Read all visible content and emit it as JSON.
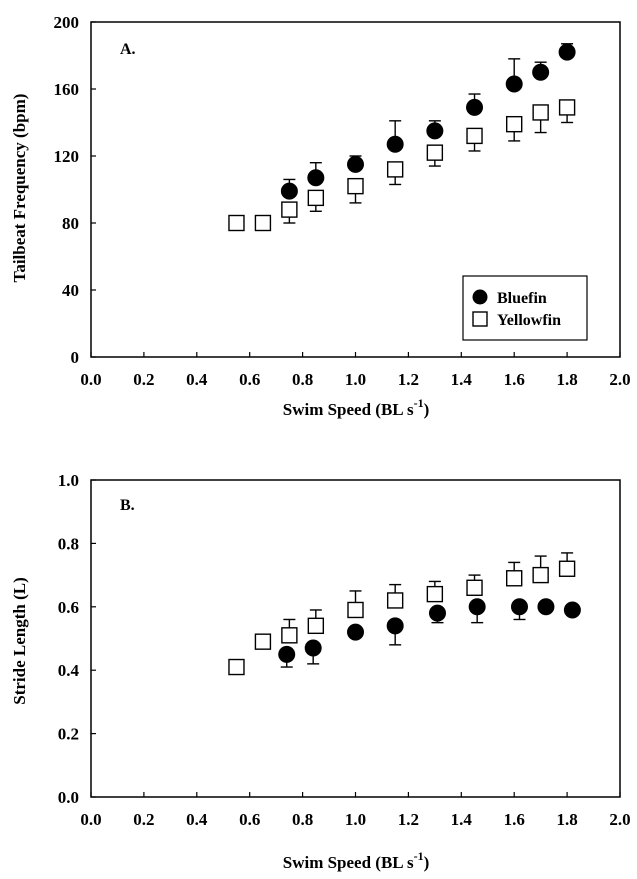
{
  "chart_data": [
    {
      "type": "scatter",
      "panel_label": "A.",
      "xlabel": "Swim Speed (BL s",
      "xlabel_sup": "-1",
      "xlabel_end": ")",
      "ylabel": "Tailbeat Frequency (bpm)",
      "xlim": [
        0.0,
        2.0
      ],
      "ylim": [
        0,
        200
      ],
      "xticks": [
        "0.0",
        "0.2",
        "0.4",
        "0.6",
        "0.8",
        "1.0",
        "1.2",
        "1.4",
        "1.6",
        "1.8",
        "2.0"
      ],
      "yticks": [
        "0",
        "40",
        "80",
        "120",
        "160",
        "200"
      ],
      "grid": false,
      "legend": "bottom-right",
      "series": [
        {
          "name": "Bluefin",
          "marker": "filled-circle",
          "error_bar": "up",
          "points": [
            {
              "x": 0.75,
              "y": 99,
              "err": 7
            },
            {
              "x": 0.85,
              "y": 107,
              "err": 9
            },
            {
              "x": 1.0,
              "y": 115,
              "err": 5
            },
            {
              "x": 1.15,
              "y": 127,
              "err": 14
            },
            {
              "x": 1.3,
              "y": 135,
              "err": 6
            },
            {
              "x": 1.45,
              "y": 149,
              "err": 8
            },
            {
              "x": 1.6,
              "y": 163,
              "err": 15
            },
            {
              "x": 1.7,
              "y": 170,
              "err": 6
            },
            {
              "x": 1.8,
              "y": 182,
              "err": 5
            }
          ]
        },
        {
          "name": "Yellowfin",
          "marker": "open-square",
          "error_bar": "down",
          "points": [
            {
              "x": 0.55,
              "y": 80,
              "err": 0
            },
            {
              "x": 0.65,
              "y": 80,
              "err": 0
            },
            {
              "x": 0.75,
              "y": 88,
              "err": 8
            },
            {
              "x": 0.85,
              "y": 95,
              "err": 8
            },
            {
              "x": 1.0,
              "y": 102,
              "err": 10
            },
            {
              "x": 1.15,
              "y": 112,
              "err": 9
            },
            {
              "x": 1.3,
              "y": 122,
              "err": 8
            },
            {
              "x": 1.45,
              "y": 132,
              "err": 9
            },
            {
              "x": 1.6,
              "y": 139,
              "err": 10
            },
            {
              "x": 1.7,
              "y": 146,
              "err": 12
            },
            {
              "x": 1.8,
              "y": 149,
              "err": 9
            }
          ]
        }
      ]
    },
    {
      "type": "scatter",
      "panel_label": "B.",
      "xlabel": "Swim Speed (BL s",
      "xlabel_sup": "-1",
      "xlabel_end": ")",
      "ylabel": "Stride Length (L)",
      "xlim": [
        0.0,
        2.0
      ],
      "ylim": [
        0.0,
        1.0
      ],
      "xticks": [
        "0.0",
        "0.2",
        "0.4",
        "0.6",
        "0.8",
        "1.0",
        "1.2",
        "1.4",
        "1.6",
        "1.8",
        "2.0"
      ],
      "yticks": [
        "0.0",
        "0.2",
        "0.4",
        "0.6",
        "0.8",
        "1.0"
      ],
      "grid": false,
      "series": [
        {
          "name": "Bluefin",
          "marker": "filled-circle",
          "error_bar": "down",
          "points": [
            {
              "x": 0.74,
              "y": 0.45,
              "err": 0.04
            },
            {
              "x": 0.84,
              "y": 0.47,
              "err": 0.05
            },
            {
              "x": 1.0,
              "y": 0.52,
              "err": 0.0
            },
            {
              "x": 1.15,
              "y": 0.54,
              "err": 0.06
            },
            {
              "x": 1.31,
              "y": 0.58,
              "err": 0.03
            },
            {
              "x": 1.46,
              "y": 0.6,
              "err": 0.05
            },
            {
              "x": 1.62,
              "y": 0.6,
              "err": 0.04
            },
            {
              "x": 1.72,
              "y": 0.6,
              "err": 0.0
            },
            {
              "x": 1.82,
              "y": 0.59,
              "err": 0.0
            }
          ]
        },
        {
          "name": "Yellowfin",
          "marker": "open-square",
          "error_bar": "up",
          "points": [
            {
              "x": 0.55,
              "y": 0.41,
              "err": 0.0
            },
            {
              "x": 0.65,
              "y": 0.49,
              "err": 0.0
            },
            {
              "x": 0.75,
              "y": 0.51,
              "err": 0.05
            },
            {
              "x": 0.85,
              "y": 0.54,
              "err": 0.05
            },
            {
              "x": 1.0,
              "y": 0.59,
              "err": 0.06
            },
            {
              "x": 1.15,
              "y": 0.62,
              "err": 0.05
            },
            {
              "x": 1.3,
              "y": 0.64,
              "err": 0.04
            },
            {
              "x": 1.45,
              "y": 0.66,
              "err": 0.04
            },
            {
              "x": 1.6,
              "y": 0.69,
              "err": 0.05
            },
            {
              "x": 1.7,
              "y": 0.7,
              "err": 0.06
            },
            {
              "x": 1.8,
              "y": 0.72,
              "err": 0.05
            }
          ]
        }
      ]
    }
  ]
}
